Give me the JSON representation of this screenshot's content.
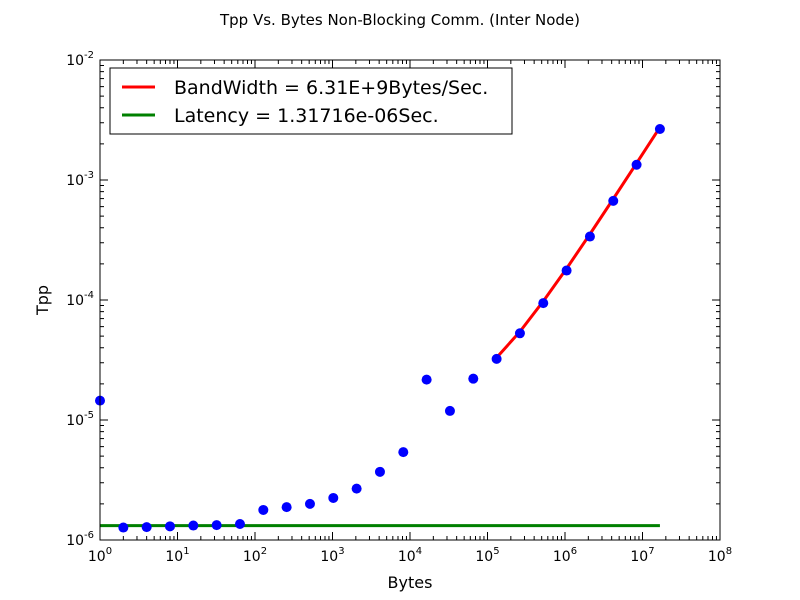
{
  "chart_data": {
    "type": "scatter",
    "title": "Tpp Vs. Bytes Non-Blocking Comm. (Inter Node)",
    "xlabel": "Bytes",
    "ylabel": "Tpp",
    "xscale": "log",
    "yscale": "log",
    "xlim": [
      1,
      100000000
    ],
    "ylim": [
      1e-06,
      0.01
    ],
    "xticks": [
      {
        "value": 1,
        "base": "10",
        "exp": "0"
      },
      {
        "value": 10,
        "base": "10",
        "exp": "1"
      },
      {
        "value": 100,
        "base": "10",
        "exp": "2"
      },
      {
        "value": 1000,
        "base": "10",
        "exp": "3"
      },
      {
        "value": 10000,
        "base": "10",
        "exp": "4"
      },
      {
        "value": 100000,
        "base": "10",
        "exp": "5"
      },
      {
        "value": 1000000,
        "base": "10",
        "exp": "6"
      },
      {
        "value": 10000000,
        "base": "10",
        "exp": "7"
      },
      {
        "value": 100000000,
        "base": "10",
        "exp": "8"
      }
    ],
    "yticks": [
      {
        "value": 1e-06,
        "base": "10",
        "exp": "-6"
      },
      {
        "value": 1e-05,
        "base": "10",
        "exp": "-5"
      },
      {
        "value": 0.0001,
        "base": "10",
        "exp": "-4"
      },
      {
        "value": 0.001,
        "base": "10",
        "exp": "-3"
      },
      {
        "value": 0.01,
        "base": "10",
        "exp": "-2"
      }
    ],
    "grid": false,
    "legend_position": "top-left",
    "series": [
      {
        "kind": "scatter",
        "color": "#0000ff",
        "x": [
          1,
          2,
          4,
          8,
          16,
          32,
          64,
          128,
          256,
          512,
          1024,
          2048,
          4096,
          8192,
          16384,
          32768,
          65536,
          131072,
          262144,
          524288,
          1048576,
          2097152,
          4194304,
          8388608,
          16777216
        ],
        "y": [
          1.45e-05,
          1.27e-06,
          1.28e-06,
          1.3e-06,
          1.32e-06,
          1.33e-06,
          1.36e-06,
          1.78e-06,
          1.88e-06,
          2e-06,
          2.24e-06,
          2.68e-06,
          3.7e-06,
          5.4e-06,
          2.17e-05,
          1.19e-05,
          2.21e-05,
          3.23e-05,
          5.28e-05,
          9.42e-05,
          0.000176,
          0.000338,
          0.00067,
          0.00134,
          0.00266
        ]
      },
      {
        "name": "BandWidth = 6.31E+9Bytes/Sec.",
        "kind": "line",
        "color": "#ff0000",
        "x": [
          131072,
          262144,
          524288,
          1048576,
          2097152,
          4194304,
          8388608,
          16777216
        ],
        "y": [
          3.31e-05,
          5.45e-05,
          9.77e-05,
          0.000183,
          0.000354,
          0.000696,
          0.00138,
          0.00275
        ]
      },
      {
        "name": "Latency = 1.31716e-06Sec.",
        "kind": "line",
        "color": "#008000",
        "x": [
          1,
          16777216
        ],
        "y": [
          1.31716e-06,
          1.31716e-06
        ]
      }
    ]
  }
}
